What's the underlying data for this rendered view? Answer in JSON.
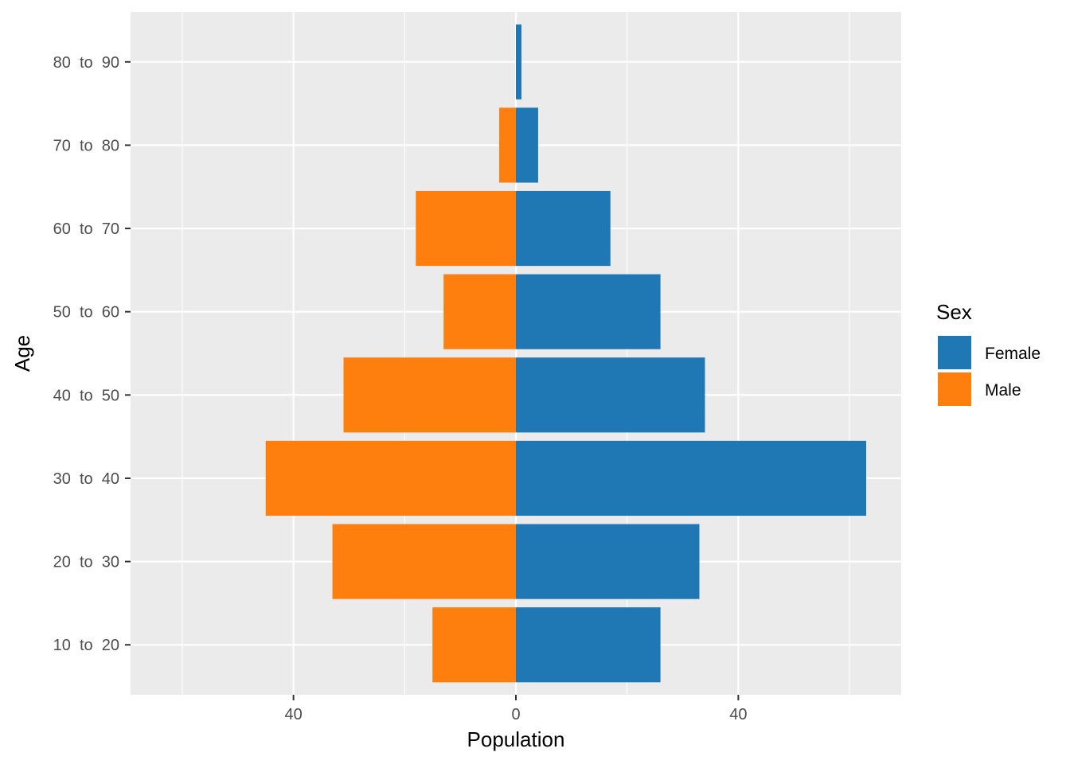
{
  "chart_data": {
    "type": "bar",
    "orientation": "horizontal",
    "layout": "population-pyramid",
    "categories": [
      "10  to  20",
      "20  to  30",
      "30  to  40",
      "40  to  50",
      "50  to  60",
      "60  to  70",
      "70  to  80",
      "80  to  90"
    ],
    "series": [
      {
        "name": "Female",
        "values": [
          26,
          33,
          63,
          34,
          26,
          17,
          4,
          1
        ],
        "color": "#1f77b4",
        "direction": "positive"
      },
      {
        "name": "Male",
        "values": [
          15,
          33,
          45,
          31,
          13,
          18,
          3,
          0
        ],
        "color": "#ff7f0e",
        "direction": "negative"
      }
    ],
    "x_ticks": [
      {
        "value": -40,
        "label": "40"
      },
      {
        "value": 0,
        "label": "0"
      },
      {
        "value": 40,
        "label": "40"
      }
    ],
    "x_minor_ticks": [
      -60,
      -20,
      20,
      60
    ],
    "xlim": [
      -69.3,
      69.3
    ],
    "xlabel": "Population",
    "ylabel": "Age",
    "grid": true,
    "panel_background": "#ebebeb",
    "grid_color": "#ffffff",
    "legend": {
      "title": "Sex",
      "position": "right"
    }
  }
}
